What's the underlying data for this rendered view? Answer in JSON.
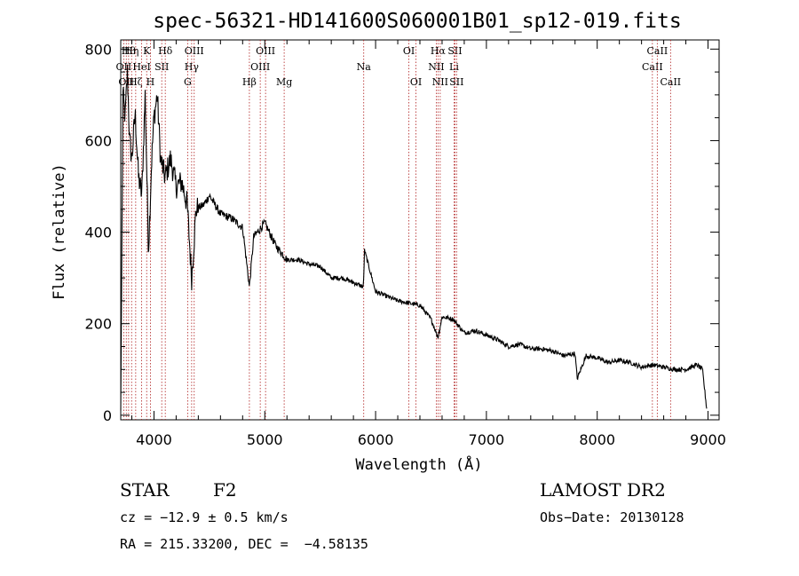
{
  "chart_data": {
    "type": "line",
    "title": "spec-56321-HD141600S060001B01_sp12-019.fits",
    "xlabel": "Wavelength (Å)",
    "ylabel": "Flux (relative)",
    "xlim": [
      3700,
      9100
    ],
    "ylim": [
      -10,
      820
    ],
    "xticks": [
      4000,
      5000,
      6000,
      7000,
      8000,
      9000
    ],
    "yticks": [
      0,
      200,
      400,
      600,
      800
    ],
    "x_tick_labels": [
      "4000",
      "5000",
      "6000",
      "7000",
      "8000",
      "9000"
    ],
    "y_tick_labels": [
      "0",
      "200",
      "400",
      "600",
      "800"
    ],
    "grid": false,
    "series": [
      {
        "color": "#000000",
        "x": [
          3700,
          3720,
          3740,
          3760,
          3780,
          3800,
          3830,
          3860,
          3890,
          3920,
          3950,
          3980,
          4000,
          4030,
          4060,
          4100,
          4150,
          4200,
          4250,
          4300,
          4340,
          4380,
          4450,
          4500,
          4600,
          4700,
          4800,
          4861,
          4900,
          5000,
          5100,
          5200,
          5300,
          5400,
          5500,
          5600,
          5700,
          5800,
          5890,
          5900,
          6000,
          6100,
          6200,
          6300,
          6400,
          6500,
          6563,
          6600,
          6700,
          6800,
          6900,
          7000,
          7100,
          7200,
          7300,
          7400,
          7500,
          7600,
          7700,
          7800,
          7820,
          7900,
          8000,
          8100,
          8200,
          8300,
          8400,
          8500,
          8600,
          8700,
          8800,
          8900,
          8950,
          8990
        ],
        "y": [
          10,
          700,
          650,
          750,
          600,
          560,
          660,
          520,
          480,
          700,
          360,
          560,
          650,
          700,
          560,
          520,
          560,
          500,
          510,
          460,
          300,
          450,
          460,
          480,
          440,
          430,
          410,
          280,
          390,
          420,
          370,
          340,
          340,
          330,
          325,
          300,
          300,
          290,
          280,
          360,
          270,
          260,
          250,
          245,
          240,
          210,
          170,
          215,
          210,
          180,
          185,
          175,
          165,
          150,
          155,
          145,
          145,
          140,
          130,
          135,
          80,
          130,
          125,
          115,
          120,
          115,
          105,
          110,
          105,
          100,
          100,
          110,
          100,
          10
        ]
      }
    ],
    "line_marks": [
      {
        "w": 3727,
        "label": "OII",
        "row": 1
      },
      {
        "w": 3750,
        "label": "OII",
        "row": 2
      },
      {
        "w": 3771,
        "label": "Hθ",
        "row": 0
      },
      {
        "w": 3798,
        "label": "Hη",
        "row": 0
      },
      {
        "w": 3835,
        "label": "Hζ",
        "row": 2
      },
      {
        "w": 3889,
        "label": "HeI",
        "row": 1
      },
      {
        "w": 3934,
        "label": "K",
        "row": 0
      },
      {
        "w": 3968,
        "label": "H",
        "row": 2
      },
      {
        "w": 4070,
        "label": "SII",
        "row": 1
      },
      {
        "w": 4102,
        "label": "Hδ",
        "row": 0
      },
      {
        "w": 4304,
        "label": "G",
        "row": 2
      },
      {
        "w": 4340,
        "label": "Hγ",
        "row": 1
      },
      {
        "w": 4363,
        "label": "OIII",
        "row": 0
      },
      {
        "w": 4861,
        "label": "Hβ",
        "row": 2
      },
      {
        "w": 4959,
        "label": "OIII",
        "row": 1
      },
      {
        "w": 5007,
        "label": "OIII",
        "row": 0
      },
      {
        "w": 5175,
        "label": "Mg",
        "row": 2
      },
      {
        "w": 5893,
        "label": "Na",
        "row": 1
      },
      {
        "w": 6300,
        "label": "OI",
        "row": 0
      },
      {
        "w": 6364,
        "label": "OI",
        "row": 2
      },
      {
        "w": 6548,
        "label": "NII",
        "row": 1
      },
      {
        "w": 6563,
        "label": "Hα",
        "row": 0
      },
      {
        "w": 6583,
        "label": "NII",
        "row": 2
      },
      {
        "w": 6708,
        "label": "Li",
        "row": 1
      },
      {
        "w": 6716,
        "label": "SII",
        "row": 0
      },
      {
        "w": 6731,
        "label": "SII",
        "row": 2
      },
      {
        "w": 8498,
        "label": "CaII",
        "row": 1
      },
      {
        "w": 8542,
        "label": "CaII",
        "row": 0
      },
      {
        "w": 8662,
        "label": "CaII",
        "row": 2
      }
    ]
  },
  "info": {
    "class": "STAR",
    "subclass": "F2",
    "survey": "LAMOST DR2",
    "cz": "cz = −12.9 ± 0.5 km/s",
    "obs_date": "Obs−Date: 20130128",
    "radec": "RA = 215.33200, DEC =  −4.58135"
  }
}
